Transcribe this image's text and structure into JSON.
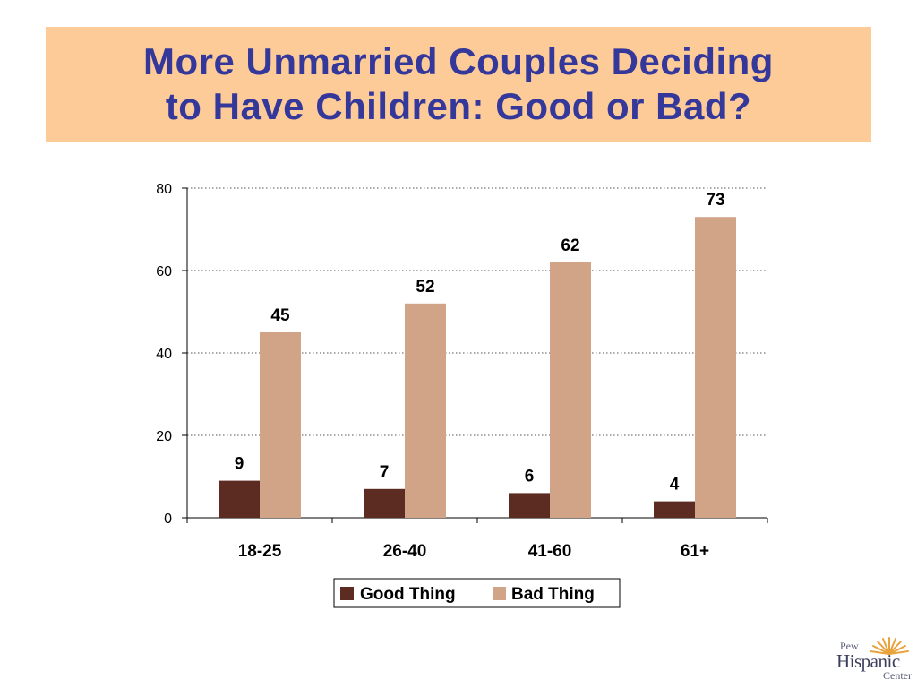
{
  "title": {
    "line1": "More Unmarried Couples Deciding",
    "line2": "to Have Children: Good or Bad?"
  },
  "colors": {
    "title_text": "#34389a",
    "title_banner": "#fdcb98",
    "good_thing": "#5c2c22",
    "bad_thing": "#d1a488"
  },
  "chart_data": {
    "type": "bar",
    "categories": [
      "18-25",
      "26-40",
      "41-60",
      "61+"
    ],
    "series": [
      {
        "name": "Good Thing",
        "values": [
          9,
          7,
          6,
          4
        ]
      },
      {
        "name": "Bad Thing",
        "values": [
          45,
          52,
          62,
          73
        ]
      }
    ],
    "yticks": [
      0,
      20,
      40,
      60,
      80
    ],
    "ylim": [
      0,
      80
    ],
    "grid": "dotted horizontal",
    "legend_position": "bottom",
    "data_labels": true
  },
  "logo": {
    "line1": "Pew",
    "line2": "Hispanic",
    "line3": "Center",
    "icon": "sun-rays-icon"
  }
}
